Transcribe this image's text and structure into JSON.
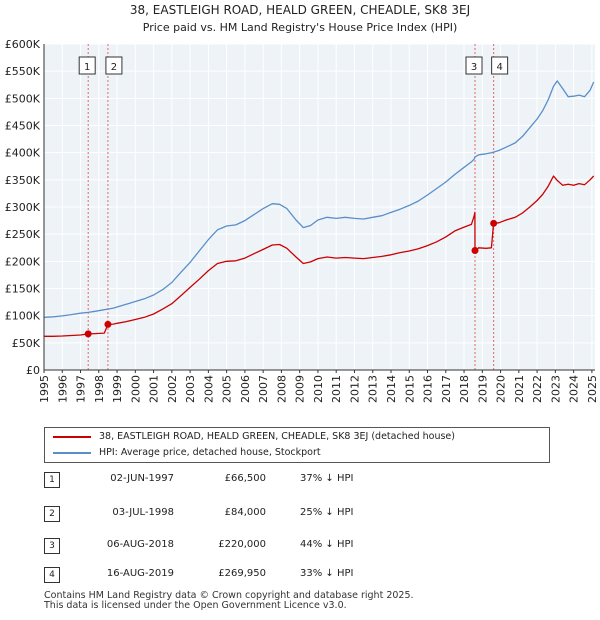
{
  "chart_data": {
    "type": "line",
    "title": "38, EASTLEIGH ROAD, HEALD GREEN, CHEADLE, SK8 3EJ",
    "subtitle": "Price paid vs. HM Land Registry's House Price Index (HPI)",
    "xlabel": "",
    "ylabel": "",
    "xlim": [
      1995,
      2025.17
    ],
    "ylim": [
      0,
      600000
    ],
    "x_ticks": [
      1995,
      1996,
      1997,
      1998,
      1999,
      2000,
      2001,
      2002,
      2003,
      2004,
      2005,
      2006,
      2007,
      2008,
      2009,
      2010,
      2011,
      2012,
      2013,
      2014,
      2015,
      2016,
      2017,
      2018,
      2019,
      2020,
      2021,
      2022,
      2023,
      2024,
      2025
    ],
    "y_ticks": [
      {
        "value": 0,
        "label": "£0"
      },
      {
        "value": 50000,
        "label": "£50K"
      },
      {
        "value": 100000,
        "label": "£100K"
      },
      {
        "value": 150000,
        "label": "£150K"
      },
      {
        "value": 200000,
        "label": "£200K"
      },
      {
        "value": 250000,
        "label": "£250K"
      },
      {
        "value": 300000,
        "label": "£300K"
      },
      {
        "value": 350000,
        "label": "£350K"
      },
      {
        "value": 400000,
        "label": "£400K"
      },
      {
        "value": 450000,
        "label": "£450K"
      },
      {
        "value": 500000,
        "label": "£500K"
      },
      {
        "value": 550000,
        "label": "£550K"
      },
      {
        "value": 600000,
        "label": "£600K"
      }
    ],
    "grid": true,
    "series": [
      {
        "name": "38, EASTLEIGH ROAD, HEALD GREEN, CHEADLE, SK8 3EJ (detached house)",
        "color": "#cc0000",
        "points": [
          [
            1995.0,
            62000
          ],
          [
            1995.5,
            62000
          ],
          [
            1996.0,
            62500
          ],
          [
            1996.5,
            63500
          ],
          [
            1997.0,
            64500
          ],
          [
            1997.42,
            66500
          ],
          [
            1997.8,
            67000
          ],
          [
            1998.3,
            68000
          ],
          [
            1998.5,
            84000
          ],
          [
            1998.8,
            84500
          ],
          [
            1999.0,
            86000
          ],
          [
            1999.5,
            89000
          ],
          [
            2000.0,
            93000
          ],
          [
            2000.5,
            97000
          ],
          [
            2001.0,
            103000
          ],
          [
            2001.5,
            112000
          ],
          [
            2002.0,
            122000
          ],
          [
            2002.5,
            137000
          ],
          [
            2003.0,
            152000
          ],
          [
            2003.5,
            167000
          ],
          [
            2004.0,
            183000
          ],
          [
            2004.5,
            196000
          ],
          [
            2005.0,
            200000
          ],
          [
            2005.5,
            201000
          ],
          [
            2006.0,
            206000
          ],
          [
            2006.5,
            214000
          ],
          [
            2007.0,
            222000
          ],
          [
            2007.5,
            230000
          ],
          [
            2007.9,
            231000
          ],
          [
            2008.3,
            224000
          ],
          [
            2008.8,
            208000
          ],
          [
            2009.2,
            196000
          ],
          [
            2009.6,
            199000
          ],
          [
            2010.0,
            205000
          ],
          [
            2010.5,
            208000
          ],
          [
            2011.0,
            206000
          ],
          [
            2011.5,
            207000
          ],
          [
            2012.0,
            206000
          ],
          [
            2012.5,
            205000
          ],
          [
            2013.0,
            207000
          ],
          [
            2013.5,
            209000
          ],
          [
            2014.0,
            212000
          ],
          [
            2014.5,
            216000
          ],
          [
            2015.0,
            219000
          ],
          [
            2015.5,
            223000
          ],
          [
            2016.0,
            229000
          ],
          [
            2016.5,
            236000
          ],
          [
            2017.0,
            245000
          ],
          [
            2017.5,
            256000
          ],
          [
            2018.0,
            263000
          ],
          [
            2018.4,
            268000
          ],
          [
            2018.55,
            283000
          ],
          [
            2018.595,
            290000
          ],
          [
            2018.6,
            220000
          ],
          [
            2018.8,
            225000
          ],
          [
            2019.2,
            224000
          ],
          [
            2019.5,
            225000
          ],
          [
            2019.62,
            269950
          ],
          [
            2019.9,
            271000
          ],
          [
            2020.3,
            276000
          ],
          [
            2020.8,
            281000
          ],
          [
            2021.2,
            289000
          ],
          [
            2021.6,
            300000
          ],
          [
            2022.0,
            312000
          ],
          [
            2022.3,
            323000
          ],
          [
            2022.6,
            338000
          ],
          [
            2022.9,
            357000
          ],
          [
            2023.1,
            349000
          ],
          [
            2023.4,
            340000
          ],
          [
            2023.7,
            342000
          ],
          [
            2024.0,
            340000
          ],
          [
            2024.3,
            343000
          ],
          [
            2024.6,
            341000
          ],
          [
            2024.9,
            350000
          ],
          [
            2025.1,
            357000
          ]
        ]
      },
      {
        "name": "HPI: Average price, detached house, Stockport",
        "color": "#5b8ec9",
        "points": [
          [
            1995.0,
            97000
          ],
          [
            1995.5,
            98000
          ],
          [
            1996.0,
            99500
          ],
          [
            1996.5,
            102000
          ],
          [
            1997.0,
            104500
          ],
          [
            1997.42,
            106000
          ],
          [
            1997.8,
            108000
          ],
          [
            1998.3,
            111000
          ],
          [
            1998.5,
            112000
          ],
          [
            1998.8,
            114000
          ],
          [
            1999.0,
            116000
          ],
          [
            1999.5,
            121000
          ],
          [
            2000.0,
            126000
          ],
          [
            2000.5,
            131000
          ],
          [
            2001.0,
            138000
          ],
          [
            2001.5,
            148000
          ],
          [
            2002.0,
            161000
          ],
          [
            2002.5,
            180000
          ],
          [
            2003.0,
            198000
          ],
          [
            2003.5,
            219000
          ],
          [
            2004.0,
            240000
          ],
          [
            2004.5,
            258000
          ],
          [
            2005.0,
            265000
          ],
          [
            2005.5,
            267000
          ],
          [
            2006.0,
            275000
          ],
          [
            2006.5,
            286000
          ],
          [
            2007.0,
            297000
          ],
          [
            2007.5,
            306000
          ],
          [
            2007.9,
            305000
          ],
          [
            2008.3,
            297000
          ],
          [
            2008.8,
            276000
          ],
          [
            2009.2,
            262000
          ],
          [
            2009.6,
            266000
          ],
          [
            2010.0,
            276000
          ],
          [
            2010.5,
            281000
          ],
          [
            2011.0,
            279000
          ],
          [
            2011.5,
            281000
          ],
          [
            2012.0,
            279000
          ],
          [
            2012.5,
            278000
          ],
          [
            2013.0,
            281000
          ],
          [
            2013.5,
            284000
          ],
          [
            2014.0,
            290000
          ],
          [
            2014.5,
            296000
          ],
          [
            2015.0,
            303000
          ],
          [
            2015.5,
            311000
          ],
          [
            2016.0,
            322000
          ],
          [
            2016.5,
            334000
          ],
          [
            2017.0,
            346000
          ],
          [
            2017.5,
            360000
          ],
          [
            2018.0,
            373000
          ],
          [
            2018.4,
            383000
          ],
          [
            2018.55,
            388000
          ],
          [
            2018.595,
            392000
          ],
          [
            2018.6,
            392000
          ],
          [
            2018.8,
            396000
          ],
          [
            2019.2,
            398000
          ],
          [
            2019.5,
            400000
          ],
          [
            2019.62,
            401000
          ],
          [
            2019.9,
            404000
          ],
          [
            2020.3,
            410000
          ],
          [
            2020.8,
            418000
          ],
          [
            2021.2,
            430000
          ],
          [
            2021.6,
            446000
          ],
          [
            2022.0,
            462000
          ],
          [
            2022.3,
            477000
          ],
          [
            2022.6,
            497000
          ],
          [
            2022.9,
            522000
          ],
          [
            2023.1,
            532000
          ],
          [
            2023.4,
            518000
          ],
          [
            2023.7,
            503000
          ],
          [
            2024.0,
            504000
          ],
          [
            2024.3,
            506000
          ],
          [
            2024.6,
            503000
          ],
          [
            2024.9,
            515000
          ],
          [
            2025.1,
            530000
          ]
        ]
      }
    ],
    "transactions": [
      {
        "num": "1",
        "date": "02-JUN-1997",
        "year": 1997.42,
        "price": 66500,
        "price_label": "£66,500",
        "hpi": "37% ↓ HPI"
      },
      {
        "num": "2",
        "date": "03-JUL-1998",
        "year": 1998.5,
        "price": 84000,
        "price_label": "£84,000",
        "hpi": "25% ↓ HPI"
      },
      {
        "num": "3",
        "date": "06-AUG-2018",
        "year": 2018.6,
        "price": 220000,
        "price_label": "£220,000",
        "hpi": "44% ↓ HPI"
      },
      {
        "num": "4",
        "date": "16-AUG-2019",
        "year": 2019.62,
        "price": 269950,
        "price_label": "£269,950",
        "hpi": "33% ↓ HPI"
      }
    ]
  },
  "legend": {
    "property_label": "38, EASTLEIGH ROAD, HEALD GREEN, CHEADLE, SK8 3EJ (detached house)",
    "hpi_label": "HPI: Average price, detached house, Stockport",
    "property_color": "#cc0000",
    "hpi_color": "#5b8ec9"
  },
  "footer": {
    "line1": "Contains HM Land Registry data © Crown copyright and database right 2025.",
    "line2": "This data is licensed under the Open Government Licence v3.0."
  }
}
